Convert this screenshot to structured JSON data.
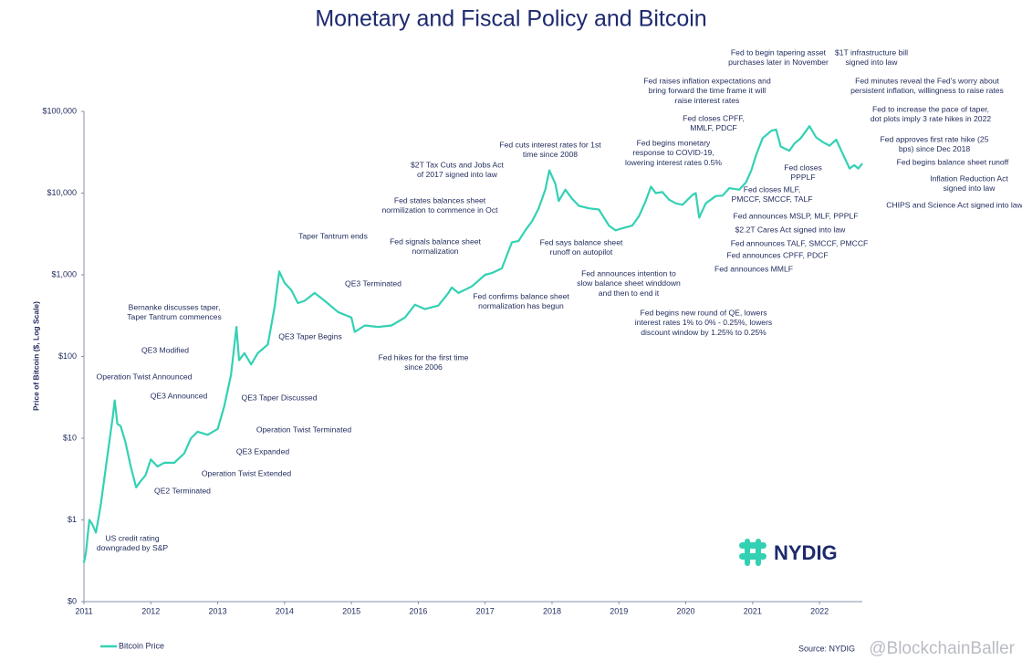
{
  "chart_data": {
    "type": "line",
    "title": "Monetary and Fiscal Policy and Bitcoin",
    "y_label": "Price of Bitcoin ($, Log Scale)",
    "log_y": true,
    "grid": false,
    "legend": "bottom-left",
    "xlim": [
      2011,
      2022.64
    ],
    "xticks": [
      2011,
      2012,
      2013,
      2014,
      2015,
      2016,
      2017,
      2018,
      2019,
      2020,
      2021,
      2022
    ],
    "ylim": [
      0.1,
      100000
    ],
    "yticks": [
      {
        "value": 0.1,
        "label": "$0"
      },
      {
        "value": 1,
        "label": "$1"
      },
      {
        "value": 10,
        "label": "$10"
      },
      {
        "value": 100,
        "label": "$100"
      },
      {
        "value": 1000,
        "label": "$1,000"
      },
      {
        "value": 10000,
        "label": "$10,000"
      },
      {
        "value": 100000,
        "label": "$100,000"
      }
    ],
    "x": [
      2011.0,
      2011.03,
      2011.08,
      2011.12,
      2011.18,
      2011.25,
      2011.32,
      2011.38,
      2011.43,
      2011.46,
      2011.5,
      2011.55,
      2011.62,
      2011.7,
      2011.78,
      2011.85,
      2011.92,
      2012.0,
      2012.1,
      2012.2,
      2012.35,
      2012.5,
      2012.6,
      2012.7,
      2012.85,
      2013.0,
      2013.1,
      2013.2,
      2013.28,
      2013.32,
      2013.4,
      2013.5,
      2013.6,
      2013.75,
      2013.85,
      2013.92,
      2014.0,
      2014.1,
      2014.2,
      2014.3,
      2014.45,
      2014.6,
      2014.8,
      2015.0,
      2015.05,
      2015.2,
      2015.4,
      2015.6,
      2015.8,
      2015.95,
      2016.1,
      2016.3,
      2016.45,
      2016.5,
      2016.6,
      2016.8,
      2017.0,
      2017.1,
      2017.25,
      2017.4,
      2017.5,
      2017.6,
      2017.7,
      2017.8,
      2017.9,
      2017.96,
      2018.05,
      2018.1,
      2018.2,
      2018.3,
      2018.4,
      2018.55,
      2018.7,
      2018.85,
      2018.95,
      2019.05,
      2019.2,
      2019.3,
      2019.4,
      2019.48,
      2019.55,
      2019.65,
      2019.75,
      2019.85,
      2019.95,
      2020.1,
      2020.15,
      2020.2,
      2020.3,
      2020.45,
      2020.55,
      2020.65,
      2020.8,
      2020.9,
      2020.98,
      2021.05,
      2021.15,
      2021.28,
      2021.35,
      2021.42,
      2021.55,
      2021.62,
      2021.72,
      2021.85,
      2021.95,
      2022.05,
      2022.15,
      2022.25,
      2022.35,
      2022.45,
      2022.52,
      2022.58,
      2022.64
    ],
    "series": [
      {
        "name": "Bitcoin Price",
        "color": "#33d1b4",
        "values": [
          0.3,
          0.4,
          1.0,
          0.9,
          0.7,
          1.5,
          4,
          9,
          18,
          29,
          15,
          14,
          9,
          4.5,
          2.5,
          3,
          3.5,
          5.5,
          4.5,
          5,
          5,
          6.5,
          10,
          12,
          11,
          13,
          25,
          60,
          230,
          90,
          110,
          80,
          110,
          140,
          400,
          1100,
          800,
          650,
          450,
          480,
          600,
          480,
          350,
          300,
          200,
          240,
          230,
          240,
          300,
          430,
          380,
          420,
          600,
          700,
          600,
          720,
          1000,
          1050,
          1200,
          2500,
          2600,
          3500,
          4500,
          6500,
          11000,
          19000,
          13000,
          8000,
          11000,
          8500,
          7000,
          6500,
          6300,
          4000,
          3500,
          3700,
          4000,
          5200,
          8000,
          12000,
          10000,
          10300,
          8300,
          7500,
          7200,
          9500,
          10000,
          5000,
          7500,
          9200,
          9300,
          11500,
          11000,
          13500,
          19000,
          29000,
          47000,
          58000,
          60000,
          37000,
          33000,
          40000,
          47000,
          66000,
          48000,
          42000,
          38000,
          45000,
          30000,
          20000,
          22000,
          20000,
          23000
        ]
      }
    ],
    "annotations": [
      {
        "lines": [
          "US credit rating",
          "downgraded by S&P"
        ]
      },
      {
        "lines": [
          "QE2 Terminated"
        ]
      },
      {
        "lines": [
          "Operation Twist Extended"
        ]
      },
      {
        "lines": [
          "QE3 Expanded"
        ]
      },
      {
        "lines": [
          "Operation Twist Terminated"
        ]
      },
      {
        "lines": [
          "QE3 Announced"
        ]
      },
      {
        "lines": [
          "Operation Twist Announced"
        ]
      },
      {
        "lines": [
          "QE3 Modified"
        ]
      },
      {
        "lines": [
          "Bernanke discusses taper,",
          "Taper Tantrum commences"
        ]
      },
      {
        "lines": [
          "QE3 Taper Discussed"
        ]
      },
      {
        "lines": [
          "Taper Tantrum ends"
        ]
      },
      {
        "lines": [
          "QE3 Taper Begins"
        ]
      },
      {
        "lines": [
          "QE3 Terminated"
        ]
      },
      {
        "lines": [
          "Fed hikes for the first time",
          "since 2006"
        ]
      },
      {
        "lines": [
          "Fed signals balance sheet",
          "normalization"
        ]
      },
      {
        "lines": [
          "Fed states balances sheet",
          "normilization to commence in Oct"
        ]
      },
      {
        "lines": [
          "$2T Tax Cuts and Jobs Act",
          "of 2017 signed into law"
        ]
      },
      {
        "lines": [
          "Fed cuts interest rates for 1st",
          "time since 2008"
        ]
      },
      {
        "lines": [
          "Fed confirms balance sheet",
          "normalization has begun"
        ]
      },
      {
        "lines": [
          "Fed says balance sheet",
          "runoff on autopilot"
        ]
      },
      {
        "lines": [
          "Fed announces intention to",
          "slow balance sheet winddown",
          "and then to end it"
        ]
      },
      {
        "lines": [
          "Fed begins monetary",
          "response to COVID-19,",
          "lowering interest rates 0.5%"
        ]
      },
      {
        "lines": [
          "Fed begins new round of QE, lowers",
          "interest rates 1% to 0% - 0.25%, lowers",
          "discount window by 1.25% to 0.25%"
        ]
      },
      {
        "lines": [
          "Fed raises inflation expectations and",
          "bring forward the time frame it will",
          "raise interest rates"
        ]
      },
      {
        "lines": [
          "Fed closes CPFF,",
          "MMLF, PDCF"
        ]
      },
      {
        "lines": [
          "Fed to begin tapering asset",
          "purchases later in November"
        ]
      },
      {
        "lines": [
          "$1T infrastructure bill",
          "signed into law"
        ]
      },
      {
        "lines": [
          "Fed minutes reveal the Fed's worry about",
          "persistent inflation, willingness to raise rates"
        ]
      },
      {
        "lines": [
          "Fed to increase the pace of taper,",
          "dot plots imply 3 rate hikes in 2022"
        ]
      },
      {
        "lines": [
          "Fed approves first rate hike (25",
          "bps) since Dec 2018"
        ]
      },
      {
        "lines": [
          "Fed begins balance sheet runoff"
        ]
      },
      {
        "lines": [
          "Inflation Reduction Act",
          "signed into law"
        ]
      },
      {
        "lines": [
          "CHIPS and Science Act signed into law"
        ]
      },
      {
        "lines": [
          "Fed closes",
          "PPPLF"
        ]
      },
      {
        "lines": [
          "Fed closes MLF,",
          "PMCCF, SMCCF, TALF"
        ]
      },
      {
        "lines": [
          "Fed announces MSLP, MLF, PPPLF"
        ]
      },
      {
        "lines": [
          "$2.2T Cares Act signed into law"
        ]
      },
      {
        "lines": [
          "Fed announces TALF, SMCCF, PMCCF"
        ]
      },
      {
        "lines": [
          "Fed announces CPFF, PDCF"
        ]
      },
      {
        "lines": [
          "Fed announces MMLF"
        ]
      }
    ],
    "logo": "NYDIG",
    "source": "Source: NYDIG",
    "watermark": "@BlockchainBaller"
  }
}
